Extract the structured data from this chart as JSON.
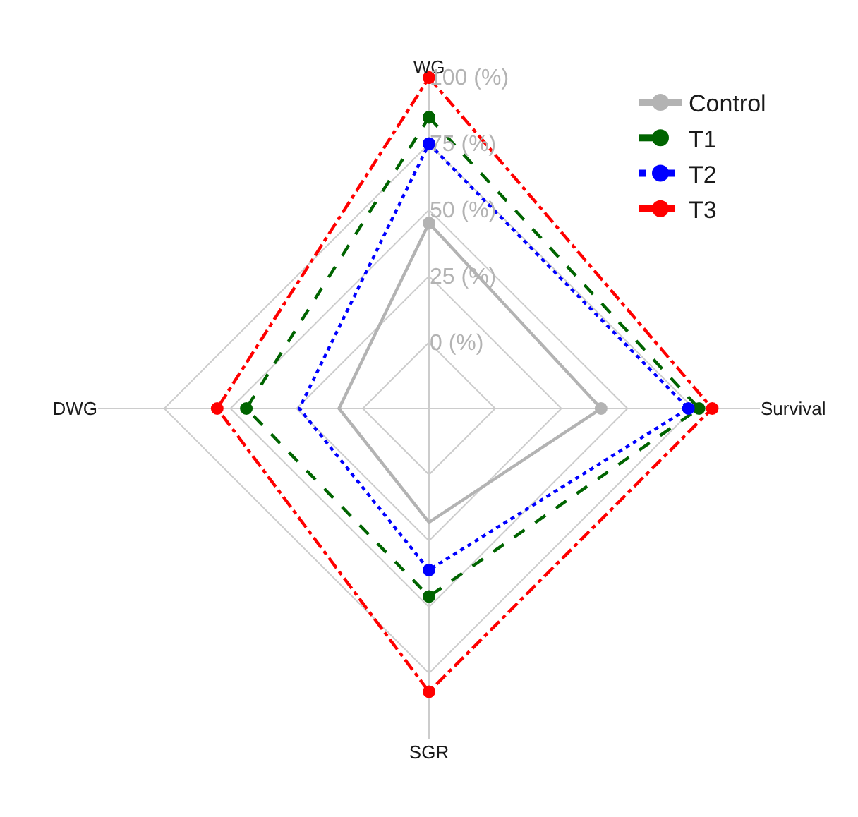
{
  "chart_data": {
    "type": "radar",
    "categories": [
      "WG",
      "Survival",
      "SGR",
      "DWG"
    ],
    "ylim": [
      -25,
      100
    ],
    "yticks": [
      {
        "value": 0,
        "label": "0 (%)"
      },
      {
        "value": 25,
        "label": "25 (%)"
      },
      {
        "value": 50,
        "label": "50 (%)"
      },
      {
        "value": 75,
        "label": "75 (%)"
      },
      {
        "value": 100,
        "label": "100 (%)"
      }
    ],
    "series": [
      {
        "name": "Control",
        "color": "#b3b3b3",
        "line_style": "solid",
        "values": [
          45,
          40,
          18,
          9
        ]
      },
      {
        "name": "T1",
        "color": "#006400",
        "line_style": "dashed",
        "values": [
          85,
          77,
          46,
          44
        ]
      },
      {
        "name": "T2",
        "color": "#0000ff",
        "line_style": "dotted",
        "values": [
          75,
          73,
          36,
          24
        ]
      },
      {
        "name": "T3",
        "color": "#ff0000",
        "line_style": "dashdot",
        "values": [
          100,
          82,
          82,
          55
        ]
      }
    ],
    "marker": "circle",
    "legend": "top right",
    "grid": true
  }
}
